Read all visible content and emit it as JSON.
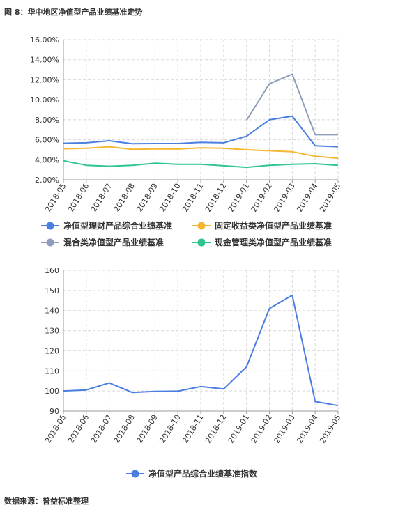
{
  "figure_title": "图 8：华中地区净值型产品业绩基准走势",
  "source": "数据来源：普益标准整理",
  "chart_data": [
    {
      "type": "line",
      "categories": [
        "2018-05",
        "2018-06",
        "2018-07",
        "2018-08",
        "2018-09",
        "2018-10",
        "2018-11",
        "2018-12",
        "2019-01",
        "2019-02",
        "2019-03",
        "2019-04",
        "2019-05"
      ],
      "ylim": [
        2,
        16
      ],
      "yticks": [
        "2.00%",
        "4.00%",
        "6.00%",
        "8.00%",
        "10.00%",
        "12.00%",
        "14.00%",
        "16.00%"
      ],
      "grid": true,
      "legend_position": "bottom",
      "series": [
        {
          "name": "净值型理财产品综合业绩基准",
          "color": "#4a7ee0",
          "values": [
            5.65,
            5.7,
            5.9,
            5.6,
            5.62,
            5.62,
            5.75,
            5.7,
            6.35,
            8.0,
            8.35,
            5.4,
            5.3
          ]
        },
        {
          "name": "固定收益类净值型产品业绩基准",
          "color": "#f4b731",
          "values": [
            5.1,
            5.15,
            5.3,
            5.05,
            5.08,
            5.07,
            5.2,
            5.15,
            5.0,
            4.9,
            4.8,
            4.35,
            4.15
          ]
        },
        {
          "name": "混合类净值型产品业绩基准",
          "color": "#8e9cbd",
          "values": [
            null,
            null,
            null,
            null,
            null,
            null,
            null,
            null,
            7.95,
            11.6,
            12.55,
            6.5,
            6.5
          ]
        },
        {
          "name": "现金管理类净值型产品业绩基准",
          "color": "#2ec68e",
          "values": [
            3.9,
            3.45,
            3.35,
            3.45,
            3.65,
            3.55,
            3.55,
            3.4,
            3.25,
            3.45,
            3.55,
            3.6,
            3.45
          ]
        }
      ]
    },
    {
      "type": "line",
      "categories": [
        "2018-05",
        "2018-06",
        "2018-07",
        "2018-08",
        "2018-09",
        "2018-10",
        "2018-11",
        "2018-12",
        "2019-01",
        "2019-02",
        "2019-03",
        "2019-04",
        "2019-05"
      ],
      "ylim": [
        90,
        160
      ],
      "yticks": [
        "90",
        "100",
        "110",
        "120",
        "130",
        "140",
        "150",
        "160"
      ],
      "grid": true,
      "legend_position": "bottom",
      "series": [
        {
          "name": "净值型产品综合业绩基准指数",
          "color": "#4a7ee0",
          "values": [
            100,
            100.5,
            104,
            99.3,
            99.8,
            99.9,
            102.2,
            101,
            112,
            141,
            147.6,
            94.7,
            92.7
          ]
        }
      ]
    }
  ]
}
